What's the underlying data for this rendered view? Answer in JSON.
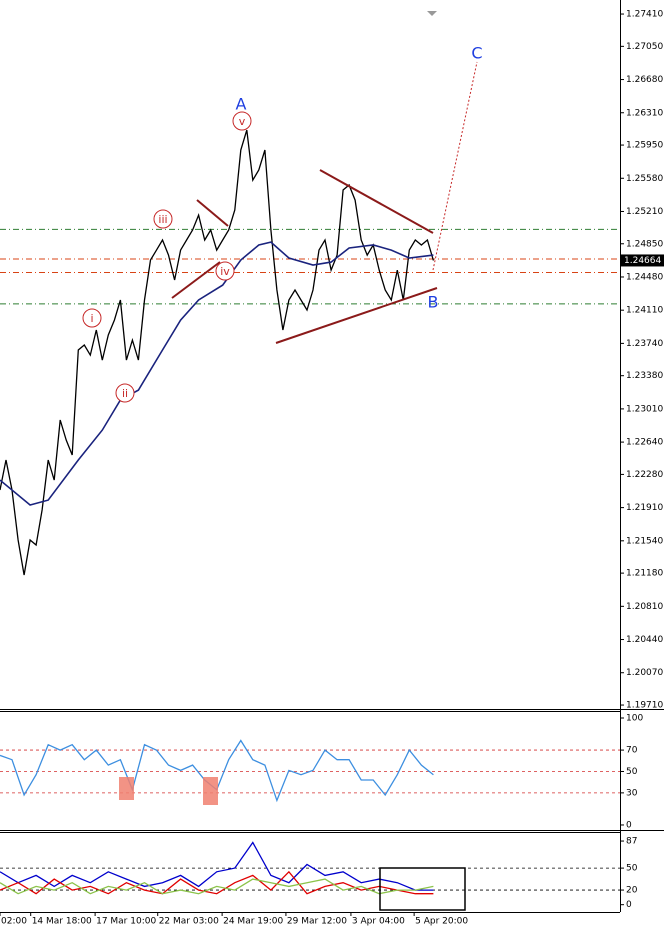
{
  "chart_data": [
    {
      "type": "line",
      "x": [
        0,
        1,
        2,
        3,
        4,
        5,
        6,
        7,
        8,
        9,
        10,
        11,
        12,
        13,
        14,
        15,
        16,
        17,
        18,
        19,
        20,
        21,
        22,
        23,
        24,
        25,
        26,
        27,
        28,
        29,
        30,
        31,
        32,
        33,
        34,
        35,
        36,
        37,
        38,
        39,
        40,
        41,
        42,
        43,
        44,
        45,
        46,
        47,
        48,
        49,
        50,
        51,
        52,
        53,
        54,
        55,
        56,
        57,
        58,
        59,
        60,
        61,
        62,
        63,
        64,
        65,
        66,
        67,
        68,
        69,
        70,
        71,
        72
      ],
      "xlim": [
        0,
        103
      ],
      "ylim": [
        1.19677,
        1.27455
      ],
      "yticks": [
        {
          "value": 1.2741,
          "label": "1.27410"
        },
        {
          "value": 1.2705,
          "label": "1.27050"
        },
        {
          "value": 1.2668,
          "label": "1.26680"
        },
        {
          "value": 1.2631,
          "label": "1.26310"
        },
        {
          "value": 1.2595,
          "label": "1.25950"
        },
        {
          "value": 1.2558,
          "label": "1.25580"
        },
        {
          "value": 1.2521,
          "label": "1.25210"
        },
        {
          "value": 1.2485,
          "label": "1.24850"
        },
        {
          "value": 1.2448,
          "label": "1.24480"
        },
        {
          "value": 1.2411,
          "label": "1.24110"
        },
        {
          "value": 1.2374,
          "label": "1.23740"
        },
        {
          "value": 1.2338,
          "label": "1.23380"
        },
        {
          "value": 1.2301,
          "label": "1.23010"
        },
        {
          "value": 1.2264,
          "label": "1.22640"
        },
        {
          "value": 1.2228,
          "label": "1.22280"
        },
        {
          "value": 1.2191,
          "label": "1.21910"
        },
        {
          "value": 1.2154,
          "label": "1.21540"
        },
        {
          "value": 1.2118,
          "label": "1.21180"
        },
        {
          "value": 1.2081,
          "label": "1.20810"
        },
        {
          "value": 1.2044,
          "label": "1.20440"
        },
        {
          "value": 1.2007,
          "label": "1.20070"
        },
        {
          "value": 1.1971,
          "label": "1.19710"
        }
      ],
      "hlines": [
        {
          "value": 1.2501,
          "color": "#2e7d32"
        },
        {
          "value": 1.2468,
          "color": "#d84315"
        },
        {
          "value": 1.2453,
          "color": "#d84315"
        },
        {
          "value": 1.2418,
          "color": "#2e7d32"
        }
      ],
      "last_price": 1.24664,
      "annotations": [
        "A",
        "B",
        "C",
        "i",
        "ii",
        "iii",
        "iv",
        "v"
      ],
      "series": [
        {
          "name": "Price",
          "color": "#000000",
          "values": [
            1.22106,
            1.2244,
            1.22106,
            1.21549,
            1.21159,
            1.21549,
            1.21493,
            1.21883,
            1.2244,
            1.22217,
            1.22886,
            1.22663,
            1.22496,
            1.23666,
            1.23722,
            1.2361,
            1.23889,
            1.23554,
            1.23833,
            1.24,
            1.24223,
            1.23554,
            1.23777,
            1.23554,
            1.24223,
            1.24669,
            1.2478,
            1.24892,
            1.24724,
            1.24446,
            1.2478,
            1.24892,
            1.25003,
            1.2517,
            1.24892,
            1.25003,
            1.2478,
            1.24892,
            1.25003,
            1.25226,
            1.25895,
            1.26117,
            1.2556,
            1.25672,
            1.25895,
            1.25003,
            1.24335,
            1.23889,
            1.24223,
            1.24335,
            1.24223,
            1.24112,
            1.24335,
            1.2478,
            1.24892,
            1.24557,
            1.24724,
            1.25449,
            1.25505,
            1.25337,
            1.24892,
            1.24724,
            1.24836,
            1.24557,
            1.24335,
            1.24223,
            1.24557,
            1.24223,
            1.2478,
            1.24892,
            1.24836,
            1.24892,
            1.24664
          ]
        },
        {
          "name": "MA",
          "color": "#1a237e",
          "x": [
            0,
            5,
            8,
            13,
            17,
            20,
            23,
            27,
            30,
            33,
            37,
            40,
            43,
            45,
            48,
            52,
            55,
            58,
            62,
            65,
            68,
            72
          ],
          "values": [
            1.22217,
            1.21939,
            1.21994,
            1.2244,
            1.22774,
            1.23109,
            1.2322,
            1.23666,
            1.24,
            1.24223,
            1.2439,
            1.24669,
            1.24836,
            1.24869,
            1.24691,
            1.24613,
            1.24646,
            1.24803,
            1.24836,
            1.2478,
            1.24691,
            1.24724
          ]
        }
      ]
    },
    {
      "type": "line",
      "x": [
        0,
        2,
        4,
        6,
        8,
        10,
        12,
        14,
        16,
        18,
        20,
        22,
        24,
        26,
        28,
        30,
        32,
        34,
        36,
        38,
        40,
        42,
        44,
        46,
        48,
        50,
        52,
        54,
        56,
        58,
        60,
        62,
        64,
        66,
        68,
        70,
        72
      ],
      "xlim": [
        0,
        103
      ],
      "ylim": [
        -4.7,
        105.6
      ],
      "yticks": [
        100,
        70,
        50,
        30,
        0
      ],
      "levels": [
        70,
        50,
        30
      ],
      "series": [
        {
          "name": "RSI",
          "color": "#3d8fe0",
          "values": [
            65,
            61,
            28,
            47,
            75,
            70,
            75,
            61,
            70,
            56,
            61,
            33,
            75,
            70,
            56,
            51,
            56,
            42,
            33,
            61,
            79,
            61,
            56,
            23,
            51,
            47,
            51,
            70,
            61,
            61,
            42,
            42,
            28,
            47,
            70,
            56,
            47
          ]
        }
      ]
    },
    {
      "type": "line",
      "x": [
        0,
        3,
        6,
        9,
        12,
        15,
        18,
        21,
        24,
        27,
        30,
        33,
        36,
        39,
        42,
        45,
        48,
        51,
        54,
        57,
        60,
        63,
        66,
        69,
        72
      ],
      "xlim": [
        0,
        103
      ],
      "ylim": [
        -10,
        98
      ],
      "yticks": [
        87,
        50,
        20,
        0
      ],
      "levels": [
        50,
        20
      ],
      "xticks": [
        {
          "value": 0,
          "label": "02:00"
        },
        {
          "value": 5.1,
          "label": "14 Mar 18:00"
        },
        {
          "value": 15.8,
          "label": "17 Mar 10:00"
        },
        {
          "value": 26.2,
          "label": "22 Mar 03:00"
        },
        {
          "value": 36.9,
          "label": "24 Mar 19:00"
        },
        {
          "value": 47.5,
          "label": "29 Mar 12:00"
        },
        {
          "value": 58.3,
          "label": "3 Apr 04:00"
        },
        {
          "value": 68.8,
          "label": "5 Apr 20:00"
        }
      ],
      "series": [
        {
          "name": "Main",
          "color": "#0000cc",
          "values": [
            45,
            30,
            40,
            25,
            40,
            30,
            45,
            35,
            25,
            30,
            40,
            25,
            45,
            50,
            85,
            40,
            30,
            55,
            40,
            45,
            30,
            35,
            30,
            20,
            20
          ]
        },
        {
          "name": "Minus",
          "color": "#e00000",
          "values": [
            20,
            30,
            15,
            35,
            20,
            25,
            15,
            30,
            20,
            15,
            35,
            20,
            15,
            30,
            40,
            20,
            45,
            15,
            25,
            30,
            20,
            25,
            20,
            15,
            15
          ]
        },
        {
          "name": "Plus",
          "color": "#8bc34a",
          "values": [
            30,
            15,
            25,
            20,
            30,
            15,
            25,
            20,
            30,
            15,
            20,
            15,
            25,
            20,
            35,
            30,
            25,
            30,
            35,
            20,
            25,
            15,
            20,
            20,
            25
          ]
        }
      ]
    }
  ]
}
